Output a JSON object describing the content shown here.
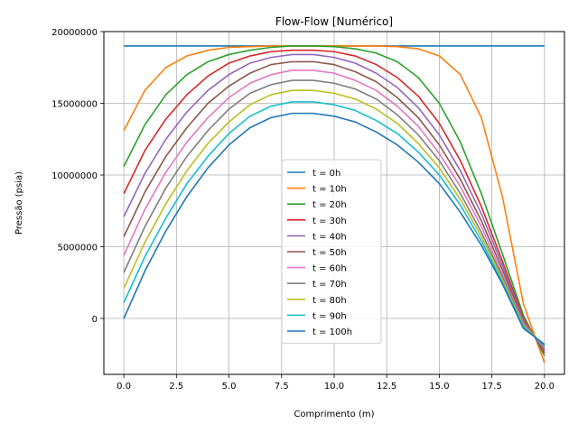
{
  "chart_data": {
    "type": "line",
    "title": "Flow-Flow [Numérico]",
    "xlabel": "Comprimento (m)",
    "ylabel": "Pressão (psia)",
    "xlim": [
      -0.95,
      20.95
    ],
    "ylim": [
      -3900000,
      20000000
    ],
    "grid": true,
    "legend_position": "lower-center",
    "x_ticks": [
      "0.0",
      "2.5",
      "5.0",
      "7.5",
      "10.0",
      "12.5",
      "15.0",
      "17.5",
      "20.0"
    ],
    "x_tick_values": [
      0,
      2.5,
      5,
      7.5,
      10,
      12.5,
      15,
      17.5,
      20
    ],
    "y_ticks": [
      "0",
      "5000000",
      "10000000",
      "15000000",
      "20000000"
    ],
    "y_tick_values": [
      0,
      5000000,
      10000000,
      15000000,
      20000000
    ],
    "x": [
      0,
      1,
      2,
      3,
      4,
      5,
      6,
      7,
      8,
      9,
      10,
      11,
      12,
      13,
      14,
      15,
      16,
      17,
      18,
      19,
      20
    ],
    "series": [
      {
        "name": "t = 0h",
        "color": "#1f77b4",
        "values": [
          19000000,
          19000000,
          19000000,
          19000000,
          19000000,
          19000000,
          19000000,
          19000000,
          19000000,
          19000000,
          19000000,
          19000000,
          19000000,
          19000000,
          19000000,
          19000000,
          19000000,
          19000000,
          19000000,
          19000000,
          19000000
        ]
      },
      {
        "name": "t = 10h",
        "color": "#ff7f0e",
        "values": [
          13100000,
          15900000,
          17500000,
          18300000,
          18700000,
          18900000,
          18950000,
          19000000,
          19000000,
          19000000,
          19000000,
          19000000,
          19000000,
          18950000,
          18800000,
          18300000,
          17000000,
          14000000,
          8500000,
          1000000,
          -3100000
        ]
      },
      {
        "name": "t = 20h",
        "color": "#2ca02c",
        "values": [
          10600000,
          13500000,
          15600000,
          17000000,
          17900000,
          18400000,
          18700000,
          18900000,
          19000000,
          19000000,
          18950000,
          18800000,
          18500000,
          17900000,
          16800000,
          15000000,
          12300000,
          8700000,
          4500000,
          200000,
          -2600000
        ]
      },
      {
        "name": "t = 30h",
        "color": "#d62728",
        "values": [
          8700000,
          11700000,
          13900000,
          15600000,
          16900000,
          17800000,
          18300000,
          18600000,
          18700000,
          18700000,
          18600000,
          18300000,
          17700000,
          16800000,
          15500000,
          13600000,
          11000000,
          7800000,
          4000000,
          0,
          -2400000
        ]
      },
      {
        "name": "t = 40h",
        "color": "#9467bd",
        "values": [
          7100000,
          10100000,
          12500000,
          14400000,
          15900000,
          17000000,
          17800000,
          18200000,
          18400000,
          18400000,
          18200000,
          17800000,
          17100000,
          16100000,
          14700000,
          12800000,
          10300000,
          7300000,
          3700000,
          -100000,
          -2300000
        ]
      },
      {
        "name": "t = 50h",
        "color": "#8c564b",
        "values": [
          5700000,
          8800000,
          11300000,
          13300000,
          15000000,
          16200000,
          17100000,
          17700000,
          17900000,
          17900000,
          17700000,
          17200000,
          16500000,
          15400000,
          14000000,
          12100000,
          9700000,
          6800000,
          3400000,
          -200000,
          -2200000
        ]
      },
      {
        "name": "t = 60h",
        "color": "#e377c2",
        "values": [
          4400000,
          7600000,
          10200000,
          12300000,
          14000000,
          15400000,
          16400000,
          17000000,
          17300000,
          17300000,
          17100000,
          16600000,
          15900000,
          14800000,
          13400000,
          11500000,
          9200000,
          6400000,
          3100000,
          -300000,
          -2100000
        ]
      },
      {
        "name": "t = 70h",
        "color": "#7f7f7f",
        "values": [
          3200000,
          6400000,
          9100000,
          11300000,
          13100000,
          14600000,
          15700000,
          16300000,
          16600000,
          16600000,
          16400000,
          16000000,
          15300000,
          14200000,
          12800000,
          11000000,
          8700000,
          6000000,
          2900000,
          -400000,
          -2000000
        ]
      },
      {
        "name": "t = 80h",
        "color": "#bcbd22",
        "values": [
          2100000,
          5300000,
          8000000,
          10300000,
          12200000,
          13700000,
          14900000,
          15600000,
          15900000,
          15900000,
          15700000,
          15300000,
          14600000,
          13600000,
          12200000,
          10500000,
          8300000,
          5700000,
          2700000,
          -500000,
          -1900000
        ]
      },
      {
        "name": "t = 90h",
        "color": "#17becf",
        "values": [
          1100000,
          4300000,
          7000000,
          9400000,
          11300000,
          12900000,
          14100000,
          14800000,
          15100000,
          15100000,
          14900000,
          14500000,
          13800000,
          12900000,
          11600000,
          10000000,
          7900000,
          5400000,
          2500000,
          -600000,
          -1900000
        ]
      },
      {
        "name": "t = 100h",
        "color": "#1f77b4",
        "values": [
          0,
          3300000,
          6100000,
          8500000,
          10500000,
          12100000,
          13300000,
          14000000,
          14300000,
          14300000,
          14100000,
          13700000,
          13000000,
          12100000,
          10900000,
          9400000,
          7400000,
          5100000,
          2400000,
          -700000,
          -1800000
        ]
      }
    ]
  }
}
